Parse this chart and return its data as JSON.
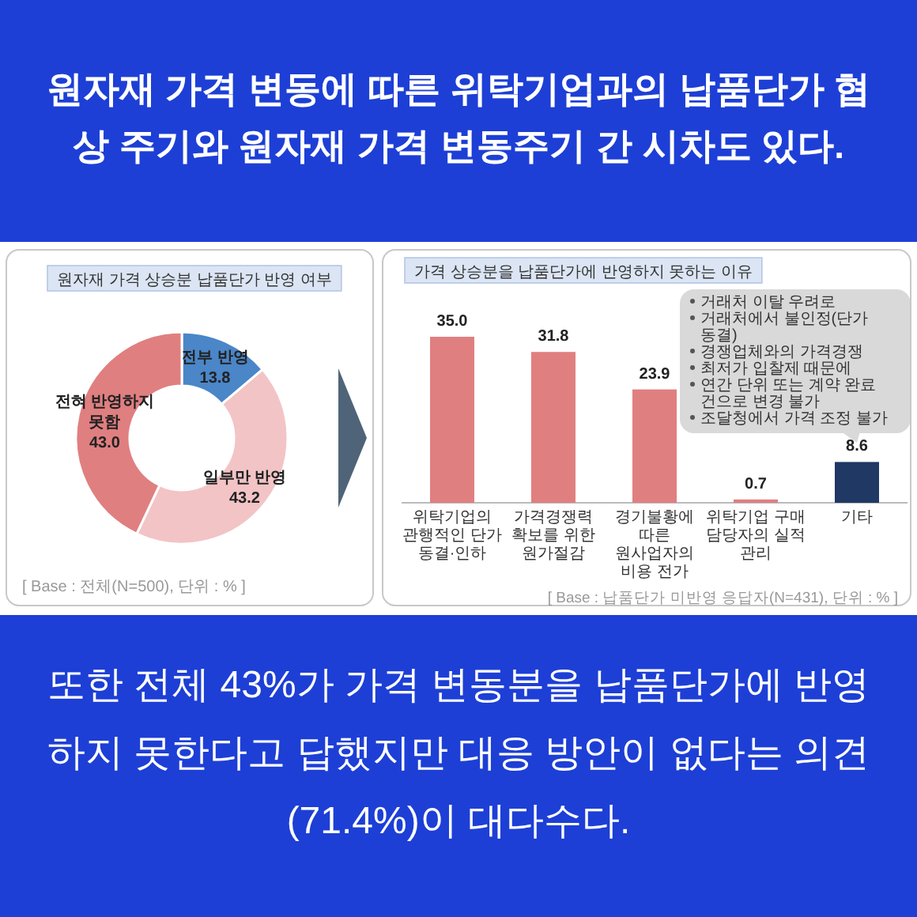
{
  "chart_data": [
    {
      "type": "other",
      "title": "원자재 가격 변동에 따른 위탁기업과의 납품단가 협상 주기와 원자재 가격 변동주기 간 시차도 있다.",
      "annotations": [
        "또한 전체 43%가 가격 변동분을 납품단가에 반영하지 못한다고 답했지만 대응 방안이 없다는 의견(71.4%)이 대다수다."
      ]
    },
    {
      "type": "donut",
      "title": "원자재 가격 상승분 납품단가 반영 여부",
      "categories": [
        "전부 반영",
        "일부만 반영",
        "전혀 반영하지 못함"
      ],
      "values": [
        13.8,
        43.2,
        43.0
      ],
      "value_labels": [
        "13.8",
        "43.2",
        "43.0"
      ],
      "colors": [
        "#4a86c8",
        "#f2c4c6",
        "#e07f80"
      ],
      "annotations": [
        "[ Base : 전체(N=500), 단위 : % ]"
      ]
    },
    {
      "type": "bar",
      "title": "가격 상승분을 납품단가에 반영하지 못하는 이유",
      "categories": [
        "위탁기업의 관행적인 단가 동결·인하",
        "가격경쟁력 확보를 위한 원가절감",
        "경기불황에 따른 원사업자의 비용 전가",
        "위탁기업 구매 담당자의 실적 관리",
        "기타"
      ],
      "values": [
        35.0,
        31.8,
        23.9,
        0.7,
        8.6
      ],
      "value_labels": [
        "35.0",
        "31.8",
        "23.9",
        "0.7",
        "8.6"
      ],
      "colors": [
        "#e07f80",
        "#e07f80",
        "#e07f80",
        "#e07f80",
        "#1f3864"
      ],
      "annotations": [
        "거래처 이탈 우려로",
        "거래처에서 불인정(단가 동결)",
        "경쟁업체와의 가격경쟁",
        "최저가 입찰제 때문에",
        "연간 단위 또는 계약 완료 건으로 변경 불가",
        "조달청에서 가격 조정 불가",
        "[ Base : 납품단가 미반영 응답자(N=431), 단위 : % ]"
      ]
    }
  ]
}
